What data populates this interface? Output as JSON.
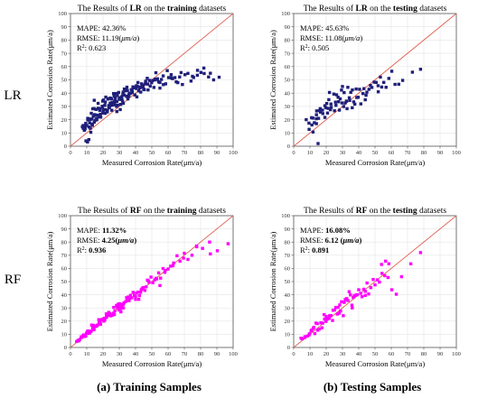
{
  "row_labels": [
    "LR",
    "RF"
  ],
  "captions": [
    "(a) Training Samples",
    "(b) Testing Samples"
  ],
  "chart_data": [
    {
      "type": "scatter",
      "model": "LR",
      "dataset": "training",
      "title_parts": [
        {
          "text": "The Results of ",
          "bold": false
        },
        {
          "text": "LR",
          "bold": true
        },
        {
          "text": " on the ",
          "bold": false
        },
        {
          "text": "training",
          "bold": true
        },
        {
          "text": " datasets",
          "bold": false
        }
      ],
      "xlabel": "Measured Corrosion Rate(μm/a)",
      "ylabel": "Estimated Corrosion Rate(μm/a)",
      "xlim": [
        0,
        100
      ],
      "ylim": [
        0,
        100
      ],
      "ticks": [
        0,
        10,
        20,
        30,
        40,
        50,
        60,
        70,
        80,
        90,
        100
      ],
      "grid": true,
      "point_color": "#1f1f7a",
      "marker": "square",
      "stats": {
        "mape": {
          "label": "MAPE: ",
          "value": "42.36%",
          "bold": false
        },
        "rmse": {
          "label": "RMSE: ",
          "value": "11.19(",
          "unit": "μm/a",
          "tail": ")",
          "bold": false
        },
        "r2": {
          "label": "R",
          "sup": "2",
          "sep": ": ",
          "value": "0.623",
          "bold": false
        }
      },
      "reference_line": {
        "x": [
          0,
          100
        ],
        "y": [
          0,
          100
        ],
        "color": "#e06050"
      },
      "x": [
        7.3,
        7.9,
        7.8,
        9.1,
        9.0,
        9.3,
        9.4,
        10.0,
        10.6,
        10.6,
        11.6,
        11.8,
        11.4,
        12.1,
        13.2,
        12.8,
        13.1,
        13.7,
        14.6,
        14.5,
        14.7,
        14.6,
        15.9,
        15.7,
        16.2,
        17.0,
        17.0,
        17.6,
        18.1,
        17.7,
        18.4,
        19.5,
        19.8,
        19.7,
        20.1,
        20.3,
        21.3,
        21.1,
        21.4,
        21.7,
        22.6,
        23.3,
        23.6,
        23.5,
        24.5,
        24.4,
        24.8,
        25.4,
        25.3,
        25.5,
        26.8,
        26.5,
        27.3,
        27.3,
        27.6,
        28.1,
        28.3,
        28.5,
        28.8,
        29.6,
        30.6,
        30.9,
        30.1,
        31.5,
        31.6,
        32.2,
        32.5,
        32.4,
        33.8,
        33.1,
        34.5,
        34.1,
        34.7,
        35.9,
        35.3,
        36.5,
        36.8,
        37.8,
        37.4,
        38.4,
        38.0,
        38.8,
        39.6,
        40.5,
        40.8,
        41.3,
        41.5,
        41.9,
        43.2,
        43.7,
        44.3,
        44.6,
        45.4,
        46.2,
        47.2,
        47.7,
        48.5,
        49.0,
        49.9,
        51.3,
        52.2,
        52.5,
        54.2,
        55.0,
        55.9,
        57.1,
        58.5,
        59.5,
        60.3,
        61.9,
        62.7,
        64.2,
        66.0,
        67.1,
        68.8,
        70.4,
        72.2,
        74.1,
        75.7,
        78.1,
        80.2,
        82.2,
        84.9,
        88.0,
        91.4,
        9.5,
        10.5,
        11.3,
        12.2,
        13.5,
        15.1,
        16.0,
        17.5,
        18.6,
        19.9,
        21.5,
        22.7,
        24.0,
        25.7,
        27.0,
        28.5,
        30.0,
        31.5,
        33.0,
        34.5,
        36.0,
        38.0,
        40.5,
        42.6,
        45.0,
        47.5,
        50.5,
        53.5,
        57.0,
        62.0,
        68.0,
        75.0,
        82.0,
        8.5,
        14.0,
        20.5,
        26.0,
        32.0,
        39.0,
        46.0,
        55.0,
        12.5,
        18.0,
        23.0,
        29.0,
        35.0,
        43.0,
        52.0,
        65.0,
        78.0,
        86.0
      ],
      "y": [
        14.6,
        13.4,
        15.6,
        14.6,
        13.1,
        16.0,
        17.2,
        15.6,
        19.8,
        21.0,
        20.5,
        17.6,
        14.5,
        20.1,
        16.7,
        24.8,
        20.5,
        28.2,
        18.1,
        28.4,
        23.8,
        34.6,
        23.5,
        27.7,
        19.9,
        28.6,
        32.3,
        22.0,
        28.2,
        28.3,
        24.1,
        30.1,
        34.0,
        29.2,
        26.6,
        34.8,
        24.8,
        30.8,
        33.2,
        37.0,
        25.8,
        35.8,
        28.9,
        30.6,
        36.3,
        32.4,
        30.8,
        27.1,
        35.6,
        32.9,
        37.7,
        39.7,
        31.2,
        34.4,
        36.6,
        39.7,
        30.0,
        26.1,
        38.3,
        40.5,
        27.6,
        31.5,
        35.3,
        37.3,
        35.7,
        39.4,
        32.3,
        40.8,
        41.7,
        43.1,
        37.5,
        42.7,
        44.5,
        37.8,
        35.6,
        40.0,
        39.8,
        42.4,
        42.6,
        44.7,
        40.4,
        44.5,
        38.6,
        45.6,
        37.2,
        45.0,
        48.0,
        41.7,
        40.8,
        47.0,
        46.1,
        44.9,
        42.6,
        49.0,
        51.2,
        42.4,
        49.6,
        45.3,
        47.8,
        44.3,
        50.0,
        55.4,
        48.5,
        48.0,
        50.3,
        46.4,
        47.0,
        57.0,
        51.7,
        53.9,
        50.9,
        51.7,
        47.9,
        52.2,
        46.5,
        53.9,
        54.9,
        49.1,
        51.8,
        57.2,
        55.6,
        54.8,
        52.2,
        50.0,
        52.0,
        4.0,
        3.2,
        5.0,
        13.5,
        15.8,
        19.5,
        21.0,
        23.2,
        21.9,
        25.0,
        27.5,
        26.8,
        29.5,
        31.0,
        33.2,
        33.8,
        36.5,
        35.2,
        38.5,
        37.8,
        39.4,
        41.2,
        43.5,
        44.0,
        43.0,
        46.8,
        49.5,
        50.8,
        53.0,
        51.5,
        55.5,
        52.7,
        58.9,
        12.0,
        22.5,
        27.5,
        31.5,
        34.0,
        44.0,
        47.0,
        43.8,
        10.5,
        27.0,
        35.5,
        31.0,
        42.0,
        44.5,
        50.5,
        48.5,
        53.5,
        55.0
      ]
    },
    {
      "type": "scatter",
      "model": "LR",
      "dataset": "testing",
      "title_parts": [
        {
          "text": "The Results of ",
          "bold": false
        },
        {
          "text": "LR",
          "bold": true
        },
        {
          "text": " on the ",
          "bold": false
        },
        {
          "text": "testing",
          "bold": true
        },
        {
          "text": " datasets",
          "bold": false
        }
      ],
      "xlabel": "Measured Corrosion Rate(μm/a)",
      "ylabel": "Estimated Corrosion Rate(μm/a)",
      "xlim": [
        0,
        100
      ],
      "ylim": [
        0,
        100
      ],
      "ticks": [
        0,
        10,
        20,
        30,
        40,
        50,
        60,
        70,
        80,
        90,
        100
      ],
      "grid": true,
      "point_color": "#1f1f7a",
      "marker": "square",
      "stats": {
        "mape": {
          "label": "MAPE: ",
          "value": "45.63%",
          "bold": false
        },
        "rmse": {
          "label": "RMSE: ",
          "value": "11.08(",
          "unit": "μm/a",
          "tail": ")",
          "bold": false
        },
        "r2": {
          "label": "R",
          "sup": "2",
          "sep": ": ",
          "value": "0.505",
          "bold": false
        }
      },
      "reference_line": {
        "x": [
          0,
          100
        ],
        "y": [
          0,
          100
        ],
        "color": "#e06050"
      },
      "x": [
        7.7,
        9.5,
        9.4,
        11.0,
        11.2,
        11.9,
        11.8,
        12.7,
        13.9,
        14.0,
        14.1,
        15.3,
        15.9,
        16.3,
        16.5,
        17.9,
        17.7,
        19.2,
        19.2,
        19.8,
        20.3,
        20.8,
        21.2,
        21.6,
        22.9,
        22.6,
        23.1,
        24.7,
        25.1,
        25.7,
        26.0,
        26.4,
        27.3,
        27.6,
        28.1,
        28.6,
        29.4,
        29.7,
        30.7,
        31.0,
        31.7,
        32.4,
        32.8,
        33.3,
        34.2,
        34.4,
        35.1,
        36.1,
        36.9,
        37.6,
        38.4,
        38.8,
        39.7,
        40.5,
        41.3,
        42.6,
        43.2,
        44.5,
        45.0,
        46.3,
        47.2,
        48.1,
        49.5,
        50.7,
        51.9,
        53.3,
        54.1,
        55.4,
        56.8,
        58.5,
        60.3,
        62.3,
        64.6,
        67.0,
        73.0,
        78.0,
        15.0,
        22.0,
        30.0,
        36.0,
        44.0,
        52.0,
        14.0
      ],
      "y": [
        20.0,
        12.7,
        17.4,
        21.5,
        16.0,
        10.7,
        21.2,
        17.7,
        20.7,
        23.7,
        26.6,
        21.0,
        26.8,
        28.3,
        25.7,
        24.6,
        27.2,
        21.7,
        30.5,
        29.0,
        32.2,
        25.0,
        28.5,
        35.1,
        31.8,
        27.5,
        29.3,
        39.3,
        26.7,
        33.2,
        30.8,
        38.7,
        36.9,
        33.5,
        27.2,
        35.7,
        42.3,
        32.6,
        29.9,
        40.4,
        32.6,
        34.0,
        28.3,
        44.4,
        36.5,
        34.5,
        40.6,
        42.4,
        33.4,
        31.7,
        43.1,
        36.7,
        36.9,
        42.9,
        31.9,
        39.7,
        43.4,
        38.4,
        40.7,
        42.9,
        45.8,
        44.3,
        48.3,
        48.1,
        45.6,
        52.1,
        44.6,
        48.1,
        44.4,
        51.1,
        56.5,
        46.6,
        46.7,
        49.6,
        55.8,
        58.0,
        2.0,
        40.5,
        45.0,
        29.0,
        35.0,
        41.0,
        17.0
      ]
    },
    {
      "type": "scatter",
      "model": "RF",
      "dataset": "training",
      "title_parts": [
        {
          "text": "The Results of ",
          "bold": false
        },
        {
          "text": "RF",
          "bold": true
        },
        {
          "text": " on the ",
          "bold": false
        },
        {
          "text": "training",
          "bold": true
        },
        {
          "text": " datasets",
          "bold": false
        }
      ],
      "xlabel": "Measured Corrosion Rate(μm/a)",
      "ylabel": "Estimated Corrosion Rate(μm/a)",
      "xlim": [
        0,
        100
      ],
      "ylim": [
        0,
        100
      ],
      "ticks": [
        0,
        10,
        20,
        30,
        40,
        50,
        60,
        70,
        80,
        90,
        100
      ],
      "grid": true,
      "point_color": "#ff00ff",
      "marker": "square",
      "stats": {
        "mape": {
          "label": "MAPE: ",
          "value": "11.32%",
          "bold": true
        },
        "rmse": {
          "label": "RMSE: ",
          "value": "4.25(",
          "unit": "μm/a",
          "tail": ")",
          "bold": true
        },
        "r2": {
          "label": "R",
          "sup": "2",
          "sep": ": ",
          "value": "0.936",
          "bold": true
        }
      },
      "reference_line": {
        "x": [
          0,
          100
        ],
        "y": [
          0,
          100
        ],
        "color": "#e06050"
      },
      "x": [
        3.8,
        4.7,
        5.7,
        6.6,
        6.8,
        7.8,
        8.6,
        9.4,
        9.8,
        10.4,
        10.8,
        11.3,
        11.8,
        12.6,
        12.7,
        13.6,
        14.1,
        14.4,
        15.0,
        15.8,
        16.4,
        16.6,
        17.4,
        18.0,
        18.5,
        19.1,
        19.4,
        20.0,
        20.9,
        21.1,
        22.1,
        22.2,
        23.0,
        23.5,
        24.2,
        24.8,
        25.1,
        25.8,
        26.6,
        27.0,
        27.3,
        28.3,
        28.8,
        29.4,
        29.9,
        30.3,
        30.8,
        31.3,
        32.2,
        32.5,
        32.9,
        33.9,
        34.5,
        34.8,
        35.5,
        36.2,
        36.9,
        37.7,
        38.5,
        39.3,
        40.0,
        40.5,
        41.5,
        42.4,
        43.1,
        43.5,
        44.6,
        45.7,
        46.5,
        47.3,
        48.3,
        49.5,
        50.6,
        51.8,
        52.7,
        54.2,
        55.4,
        56.9,
        58.2,
        60.0,
        61.6,
        63.4,
        65.5,
        67.3,
        69.5,
        72.2,
        74.7,
        77.6,
        81.2,
        85.5,
        90.3,
        96.9,
        5.2,
        8.2,
        11.0,
        14.5,
        17.5,
        20.5,
        23.5,
        26.5,
        29.5,
        32.5,
        36.0,
        40.0,
        44.0,
        48.0,
        53.0,
        58.0,
        63.0,
        70.0,
        77.5,
        86.0,
        13.0,
        22.0,
        31.0,
        42.0,
        55.0
      ],
      "y": [
        4.6,
        5.4,
        6.1,
        8.1,
        7.6,
        9.1,
        8.3,
        8.7,
        10.8,
        12.2,
        10.6,
        11.9,
        10.9,
        12.2,
        12.4,
        14.8,
        16.8,
        13.4,
        16.2,
        16.0,
        16.6,
        17.0,
        21.1,
        19.7,
        17.6,
        21.1,
        21.1,
        21.6,
        22.2,
        20.8,
        22.8,
        24.1,
        24.3,
        26.6,
        25.7,
        24.0,
        25.0,
        24.5,
        30.4,
        25.0,
        27.8,
        31.9,
        30.3,
        32.9,
        28.4,
        33.2,
        29.5,
        31.3,
        32.4,
        29.9,
        33.9,
        34.8,
        37.8,
        35.7,
        38.3,
        36.9,
        39.6,
        37.7,
        41.8,
        39.5,
        36.5,
        41.2,
        42.0,
        39.3,
        41.8,
        43.8,
        45.4,
        43.3,
        46.0,
        51.1,
        49.4,
        53.4,
        49.1,
        51.3,
        52.5,
        56.6,
        52.6,
        59.9,
        58.4,
        59.5,
        61.7,
        64.1,
        69.6,
        65.5,
        67.8,
        66.8,
        70.0,
        76.4,
        75.2,
        80.0,
        73.4,
        78.7,
        5.0,
        9.5,
        12.5,
        14.0,
        18.5,
        20.0,
        24.5,
        26.0,
        31.5,
        33.0,
        35.5,
        38.5,
        44.5,
        50.5,
        52.0,
        57.0,
        62.0,
        71.5,
        77.0,
        71.0,
        17.0,
        25.5,
        27.0,
        36.5,
        47.0
      ]
    },
    {
      "type": "scatter",
      "model": "RF",
      "dataset": "testing",
      "title_parts": [
        {
          "text": "The Results of ",
          "bold": false
        },
        {
          "text": "RF",
          "bold": true
        },
        {
          "text": " on the ",
          "bold": false
        },
        {
          "text": "testing",
          "bold": true
        },
        {
          "text": " datasets",
          "bold": false
        }
      ],
      "xlabel": "Measured Corrosion Rate(μm/a)",
      "ylabel": "Estimated Corrosion Rate(μm/a)",
      "xlim": [
        0,
        100
      ],
      "ylim": [
        0,
        100
      ],
      "ticks": [
        0,
        10,
        20,
        30,
        40,
        50,
        60,
        70,
        80,
        90,
        100
      ],
      "grid": true,
      "point_color": "#ff00ff",
      "marker": "square",
      "stats": {
        "mape": {
          "label": "MAPE: ",
          "value": "16.08%",
          "bold": true
        },
        "rmse": {
          "label": "RMSE: ",
          "value": "6.12 (",
          "unit": "μm/a",
          "tail": ")",
          "bold": true
        },
        "r2": {
          "label": "R",
          "sup": "2",
          "sep": ": ",
          "value": "0.891",
          "bold": true
        }
      },
      "reference_line": {
        "x": [
          0,
          100
        ],
        "y": [
          0,
          100
        ],
        "color": "#e06050"
      },
      "x": [
        4.5,
        5.3,
        6.8,
        7.0,
        8.4,
        9.4,
        9.8,
        10.7,
        11.1,
        12.4,
        13.0,
        13.7,
        14.5,
        14.7,
        15.8,
        16.7,
        17.4,
        17.8,
        18.7,
        19.0,
        19.9,
        20.9,
        21.8,
        22.1,
        22.9,
        23.9,
        24.2,
        25.1,
        25.9,
        26.8,
        27.3,
        28.3,
        28.8,
        29.4,
        30.5,
        31.1,
        31.7,
        32.6,
        33.4,
        34.1,
        34.9,
        35.8,
        36.6,
        37.3,
        38.3,
        39.1,
        40.0,
        41.2,
        42.0,
        43.1,
        44.1,
        45.1,
        46.1,
        47.4,
        48.9,
        50.0,
        51.5,
        52.7,
        54.3,
        56.0,
        58.0,
        60.3,
        63.1,
        66.3,
        72.0,
        78.0,
        12.0,
        20.0,
        28.0,
        36.0,
        44.0,
        54.0,
        56.5,
        58.5
      ],
      "y": [
        7.0,
        6.5,
        7.6,
        8.2,
        8.6,
        9.5,
        10.4,
        12.6,
        13.2,
        15.3,
        10.5,
        18.5,
        18.1,
        13.1,
        13.9,
        18.7,
        14.9,
        18.4,
        24.9,
        21.5,
        19.8,
        21.6,
        22.2,
        24.1,
        24.2,
        20.5,
        28.2,
        28.4,
        30.3,
        25.3,
        30.4,
        32.3,
        27.7,
        34.7,
        24.1,
        34.2,
        36.4,
        37.1,
        35.6,
        42.3,
        39.9,
        32.1,
        37.9,
        39.2,
        39.8,
        40.0,
        43.8,
        41.1,
        38.5,
        44.2,
        42.6,
        48.9,
        40.6,
        45.4,
        51.6,
        47.5,
        51.3,
        49.6,
        56.2,
        54.5,
        53.1,
        43.8,
        40.4,
        53.7,
        63.5,
        72.0,
        14.5,
        23.5,
        26.0,
        30.0,
        39.5,
        63.0,
        65.5,
        63.5
      ]
    }
  ]
}
